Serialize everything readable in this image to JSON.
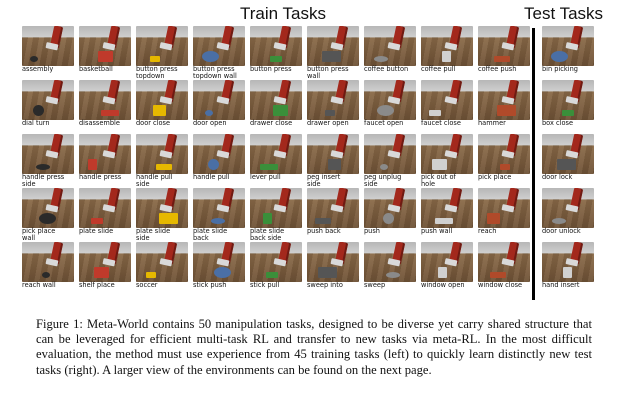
{
  "headings": {
    "train": "Train Tasks",
    "test": "Test Tasks"
  },
  "train_tasks": [
    "assembly",
    "basketball",
    "button press\ntopdown",
    "button press\ntopdown wall",
    "button press",
    "button press\nwall",
    "coffee button",
    "coffee pull",
    "coffee push",
    "dial turn",
    "disassemble",
    "door close",
    "door open",
    "drawer close",
    "drawer open",
    "faucet open",
    "faucet close",
    "hammer",
    "handle press\nside",
    "handle press",
    "handle pull\nside",
    "handle pull",
    "lever pull",
    "peg insert\nside",
    "peg unplug\nside",
    "pick out of\nhole",
    "pick place",
    "pick place\nwall",
    "plate slide",
    "plate slide\nside",
    "plate slide\nback",
    "plate slide\nback side",
    "push back",
    "push",
    "push wall",
    "reach",
    "reach wall",
    "shelf place",
    "soccer",
    "stick push",
    "stick pull",
    "sweep into",
    "sweep",
    "window open",
    "window close"
  ],
  "test_tasks": [
    "bin picking",
    "box close",
    "door lock",
    "door unlock",
    "hand insert"
  ],
  "caption": "Figure 1: Meta-World contains 50 manipulation tasks, designed to be diverse yet carry shared structure that can be leveraged for efficient multi-task RL and transfer to new tasks via meta-RL. In the most difficult evaluation, the method must use experience from 45 training tasks (left) to quickly learn distinctly new test tasks (right). A larger view of the environments can be found on the next page.",
  "colors": {
    "robot_arm": "#a3281c",
    "table": "#7a5a3c",
    "floor": "#c8c8c8"
  }
}
